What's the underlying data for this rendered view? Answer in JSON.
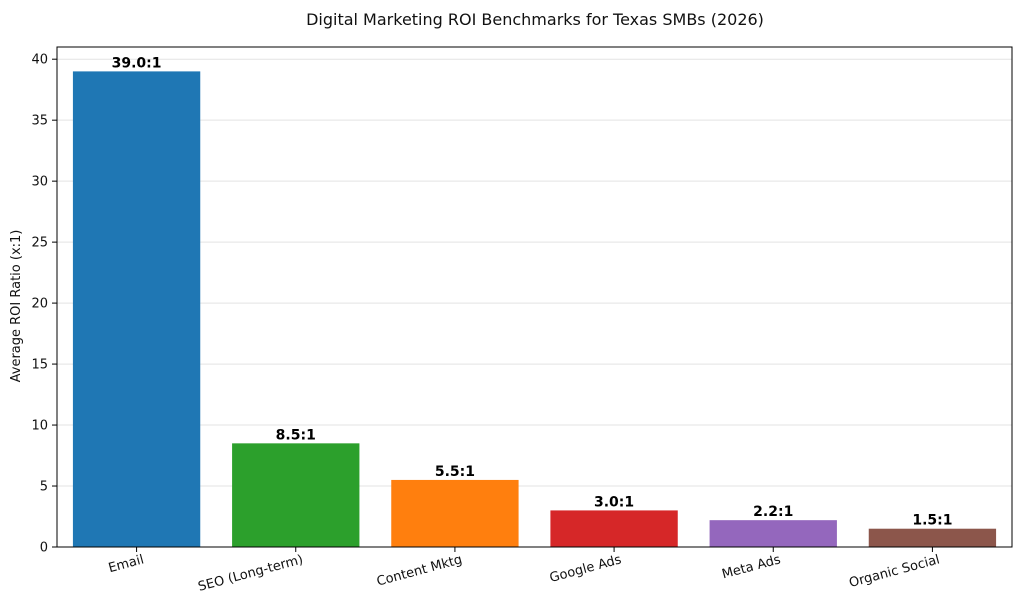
{
  "chart_data": {
    "type": "bar",
    "title": "Digital Marketing ROI Benchmarks for Texas SMBs (2026)",
    "xlabel": "",
    "ylabel": "Average ROI Ratio (x:1)",
    "ylim": [
      0,
      41
    ],
    "yticks": [
      0,
      5,
      10,
      15,
      20,
      25,
      30,
      35,
      40
    ],
    "grid": "horizontal",
    "categories": [
      "Email",
      "SEO (Long-term)",
      "Content Mktg",
      "Google Ads",
      "Meta Ads",
      "Organic Social"
    ],
    "values": [
      39.0,
      8.5,
      5.5,
      3.0,
      2.2,
      1.5
    ],
    "data_labels": [
      "39.0:1",
      "8.5:1",
      "5.5:1",
      "3.0:1",
      "2.2:1",
      "1.5:1"
    ],
    "colors": [
      "#1f77b4",
      "#2ca02c",
      "#ff7f0e",
      "#d62728",
      "#9467bd",
      "#8c564b"
    ]
  }
}
